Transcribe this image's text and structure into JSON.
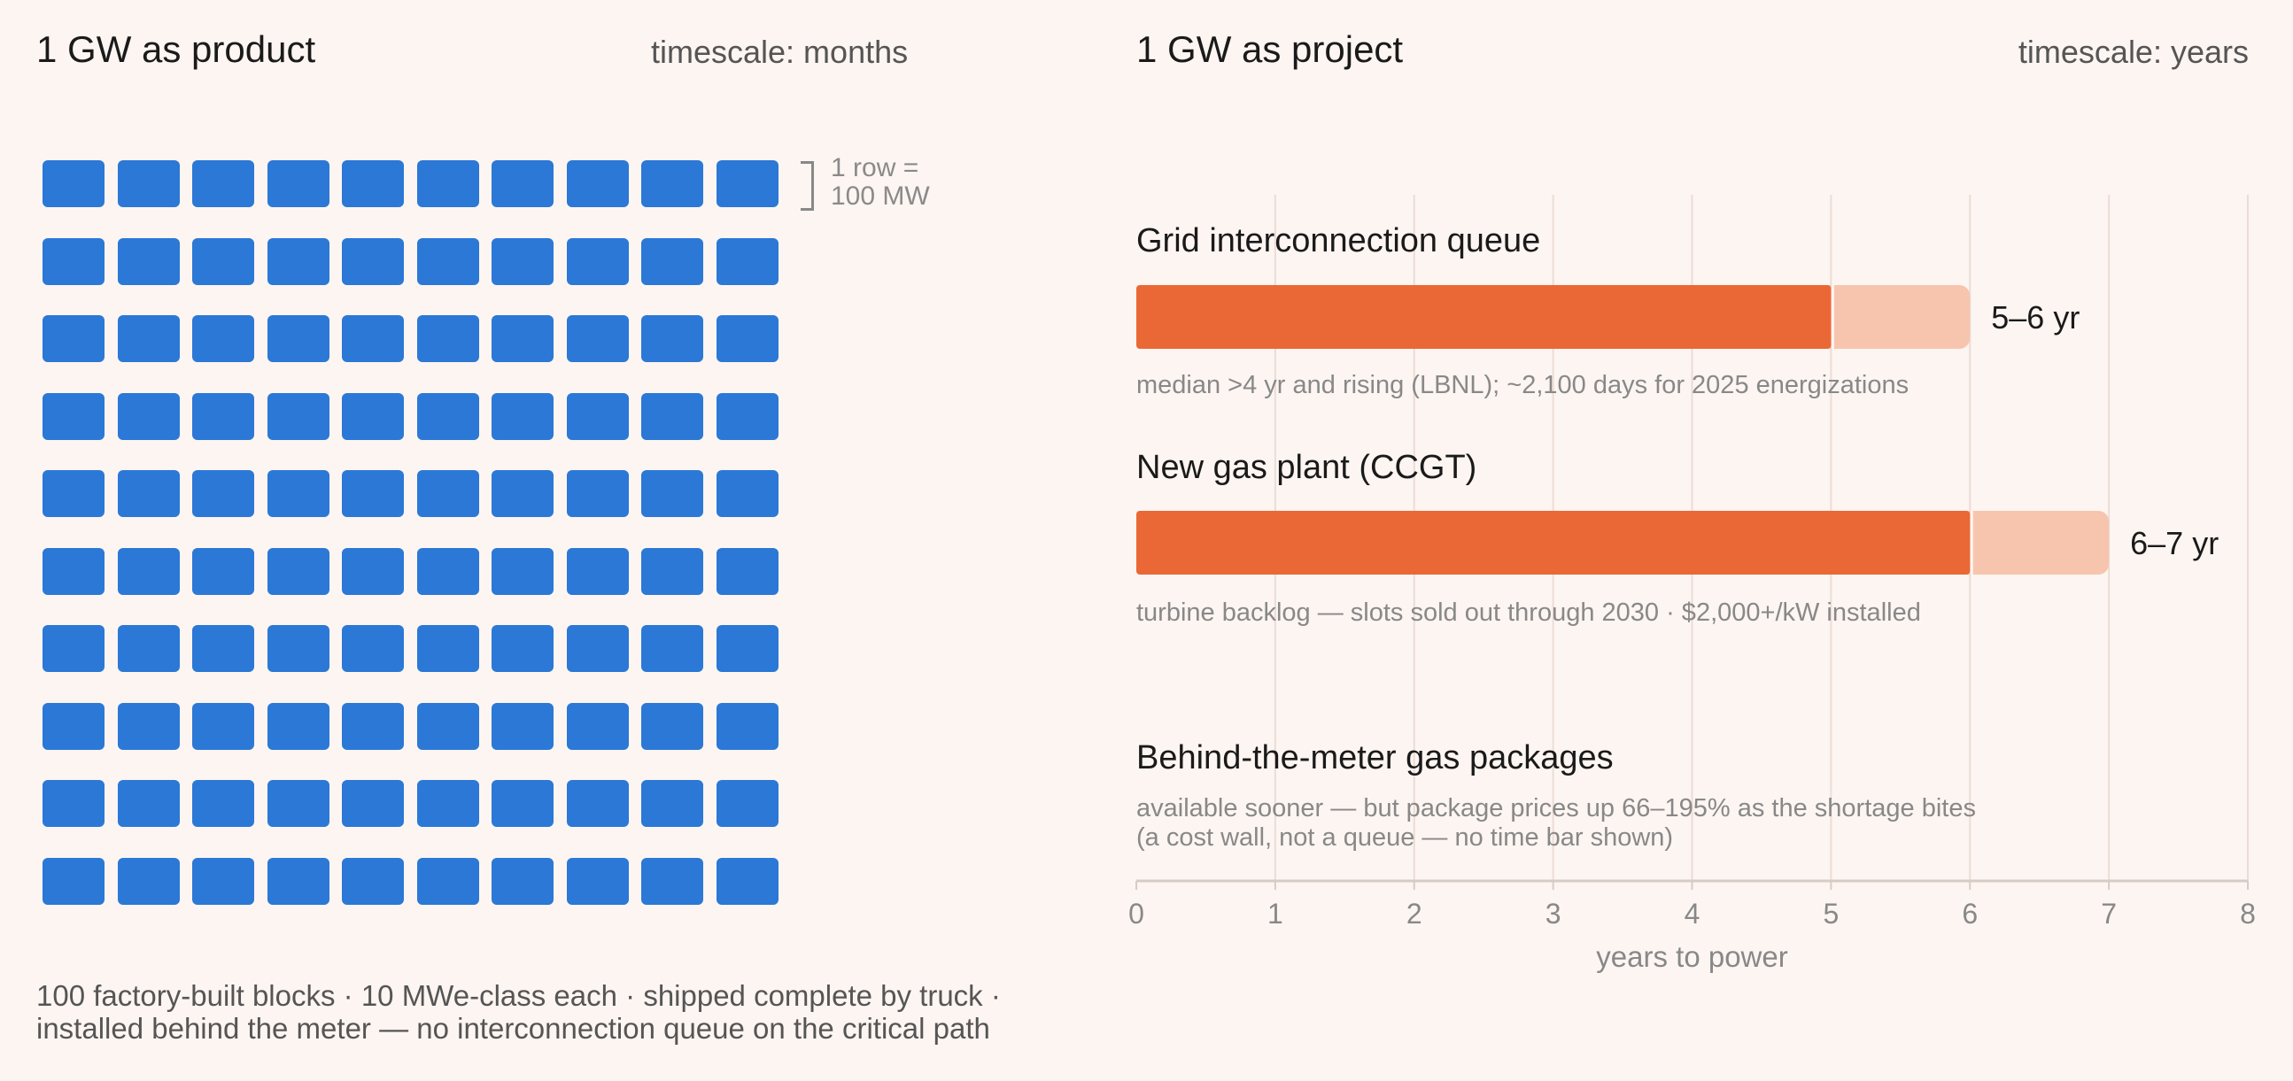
{
  "left_panel": {
    "title": "1 GW as product",
    "timescale": "timescale: months",
    "rows": 10,
    "cols": 10,
    "block_color": "#2b78d6",
    "legend_note": "1 row =\n100 MW",
    "footnote_line1": "100 factory-built blocks · 10 MWe-class each · shipped complete by truck ·",
    "footnote_line2": "installed behind the meter — no interconnection queue on the critical path"
  },
  "right_panel": {
    "title": "1 GW as project",
    "timescale": "timescale: years"
  },
  "chart_data": {
    "type": "bar",
    "orientation": "horizontal",
    "xlabel": "years to power",
    "xlim": [
      0,
      8
    ],
    "xticks": [
      0,
      1,
      2,
      3,
      4,
      5,
      6,
      7,
      8
    ],
    "colors": {
      "base": "#ea6836",
      "range": "#f7c5ae",
      "grid": "#ecdcd6"
    },
    "rows": [
      {
        "label": "Grid interconnection queue",
        "base": 5,
        "high": 6,
        "range_label": "5–6 yr",
        "note_line1": "median >4 yr and rising (LBNL); ~2,100 days for 2025 energizations",
        "note_line2": ""
      },
      {
        "label": "New gas plant (CCGT)",
        "base": 6,
        "high": 7,
        "range_label": "6–7 yr",
        "note_line1": "turbine backlog — slots sold out through 2030 · $2,000+/kW installed",
        "note_line2": ""
      },
      {
        "label": "Behind-the-meter gas packages",
        "base": null,
        "high": null,
        "range_label": "",
        "note_line1": "available sooner — but package prices up 66–195% as the shortage bites",
        "note_line2": "(a cost wall, not a queue — no time bar shown)"
      }
    ]
  }
}
